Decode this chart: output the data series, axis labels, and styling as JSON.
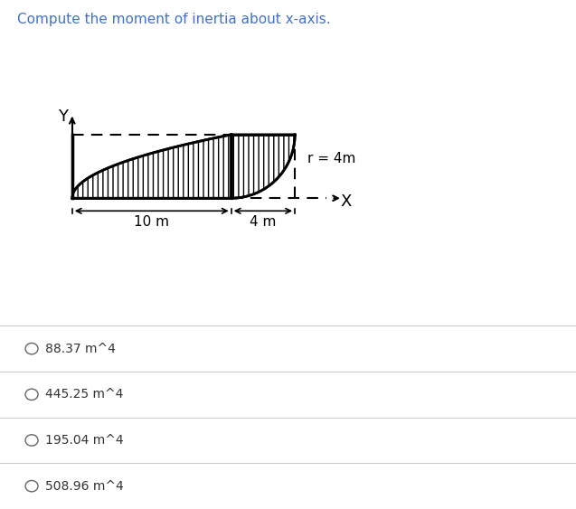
{
  "title": "Compute the moment of inertia about x-axis.",
  "title_color": "#4472c4",
  "title_fontsize": 11,
  "background_color": "#ffffff",
  "dim_10m_label": "10 m",
  "dim_4m_label": "4 m",
  "radius_label": "r = 4m",
  "x_label": "X",
  "y_label": "Y",
  "options": [
    {
      "label": "88.37 m^4",
      "selected": false
    },
    {
      "label": "445.25 m^4",
      "selected": false
    },
    {
      "label": "195.04 m^4",
      "selected": false
    },
    {
      "label": "508.96 m^4",
      "selected": false
    }
  ],
  "option_text_color": "#333333",
  "option_fontsize": 10,
  "separator_line_color": "#cccccc"
}
